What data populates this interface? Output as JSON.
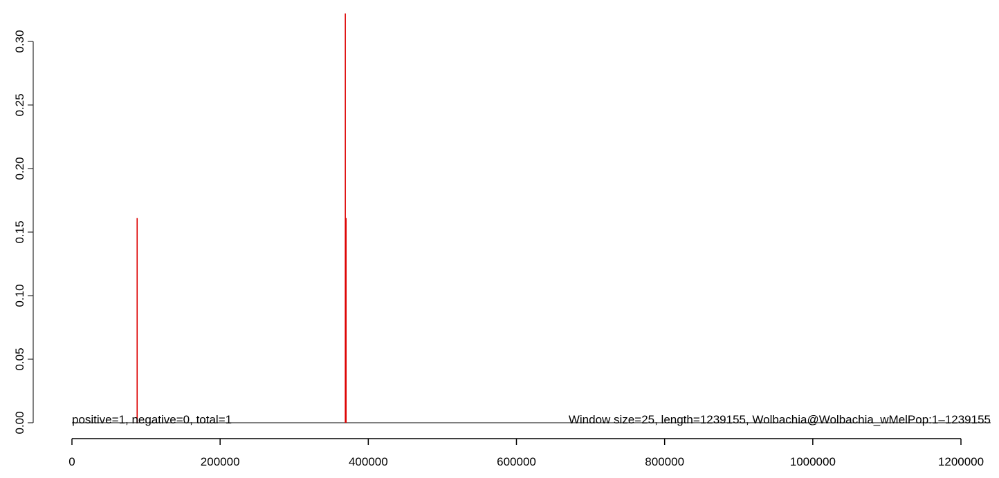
{
  "chart_data": {
    "type": "bar",
    "title": "",
    "xlabel": "",
    "ylabel": "",
    "xlim": [
      0,
      1200000
    ],
    "ylim": [
      0,
      0.3
    ],
    "x_ticks": [
      "0",
      "200000",
      "400000",
      "600000",
      "800000",
      "1000000",
      "1200000"
    ],
    "y_ticks": [
      "0.00",
      "0.05",
      "0.10",
      "0.15",
      "0.20",
      "0.25",
      "0.30"
    ],
    "grid": false,
    "legend": "none",
    "series": [
      {
        "color": "#dd0000",
        "points": [
          {
            "x": 88000,
            "y": 0.161
          },
          {
            "x": 369000,
            "y": 0.322
          },
          {
            "x": 370000,
            "y": 0.161
          }
        ]
      }
    ],
    "annotations": {
      "left": "positive=1, negative=0, total=1",
      "right": "Window size=25, length=1239155, Wolbachia@Wolbachia_wMelPop:1–1239155"
    }
  }
}
